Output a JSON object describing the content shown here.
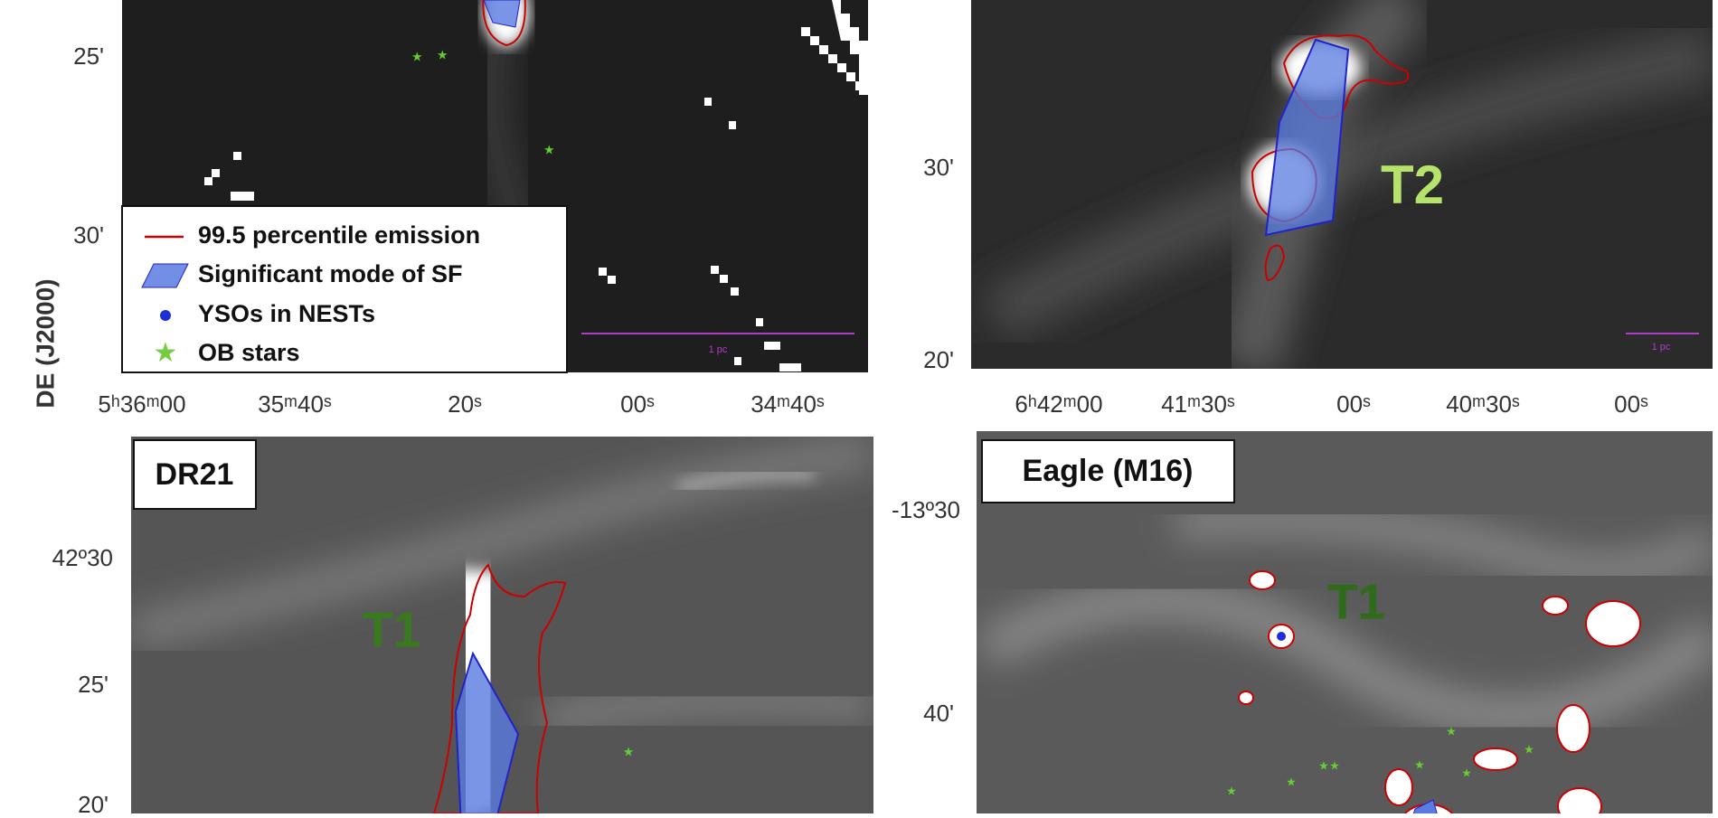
{
  "axis_label": "DE (J2000)",
  "panels": [
    {
      "y_ticks": [
        "25'",
        "30'"
      ],
      "x_ticks": [
        "5ʰ36ᵐ00",
        "35ᵐ40ˢ",
        "20ˢ",
        "00ˢ",
        "34ᵐ40ˢ"
      ],
      "scale_bar": "1 pc",
      "legend": [
        "99.5 percentile emission",
        "Significant mode of SF",
        "YSOs in NESTs",
        "OB stars"
      ]
    },
    {
      "y_ticks": [
        "30'",
        "20'"
      ],
      "x_ticks": [
        "6ʰ42ᵐ00",
        "41ᵐ30ˢ",
        "00ˢ",
        "40ᵐ30ˢ",
        "00ˢ"
      ],
      "scale_bar": "1 pc",
      "region": "T2"
    },
    {
      "title": "DR21",
      "y_ticks": [
        "42º30",
        "25'",
        "20'"
      ],
      "region": "T1"
    },
    {
      "title": "Eagle (M16)",
      "y_ticks": [
        "-13º30",
        "40'"
      ],
      "region": "T1"
    }
  ]
}
